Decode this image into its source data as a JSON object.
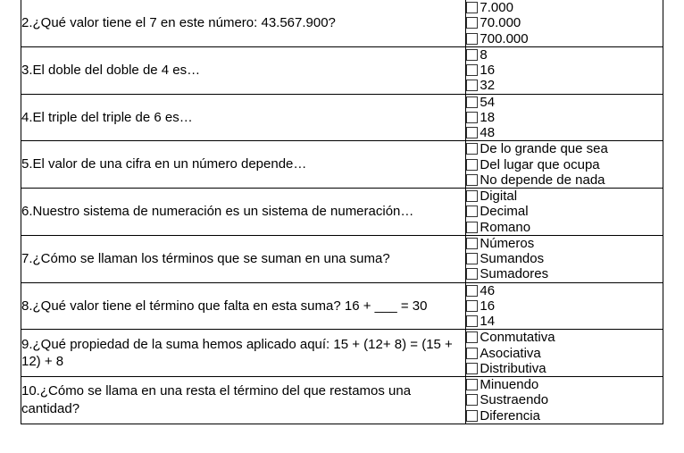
{
  "questions": [
    {
      "text": "2.¿Qué valor tiene el 7 en este número: 43.567.900?",
      "options": [
        "7.000",
        "70.000",
        "700.000"
      ]
    },
    {
      "text": "3.El doble del doble de 4 es…",
      "options": [
        "8",
        "16",
        "32"
      ]
    },
    {
      "text": "4.El triple del triple de 6 es…",
      "options": [
        "54",
        "18",
        "48"
      ]
    },
    {
      "text": "5.El valor de una cifra en un número depende…",
      "options": [
        "De lo grande que sea",
        "Del lugar que ocupa",
        "No depende de nada"
      ]
    },
    {
      "text": "6.Nuestro sistema de numeración es un sistema de numeración…",
      "options": [
        "Digital",
        "Decimal",
        "Romano"
      ]
    },
    {
      "text": "7.¿Cómo se llaman los términos que se suman en una suma?",
      "options": [
        "Números",
        "Sumandos",
        "Sumadores"
      ]
    },
    {
      "text": "8.¿Qué valor tiene el término que falta en esta suma? 16 + ___ = 30",
      "options": [
        "46",
        "16",
        "14"
      ]
    },
    {
      "text": "9.¿Qué propiedad de la suma hemos aplicado aquí: 15 + (12+ 8) = (15 + 12) + 8",
      "options": [
        "Conmutativa",
        "Asociativa",
        "Distributiva"
      ]
    },
    {
      "text": "10.¿Cómo se llama en una resta el  término del que restamos una cantidad?",
      "options": [
        "Minuendo",
        "Sustraendo",
        "Diferencia"
      ]
    }
  ]
}
